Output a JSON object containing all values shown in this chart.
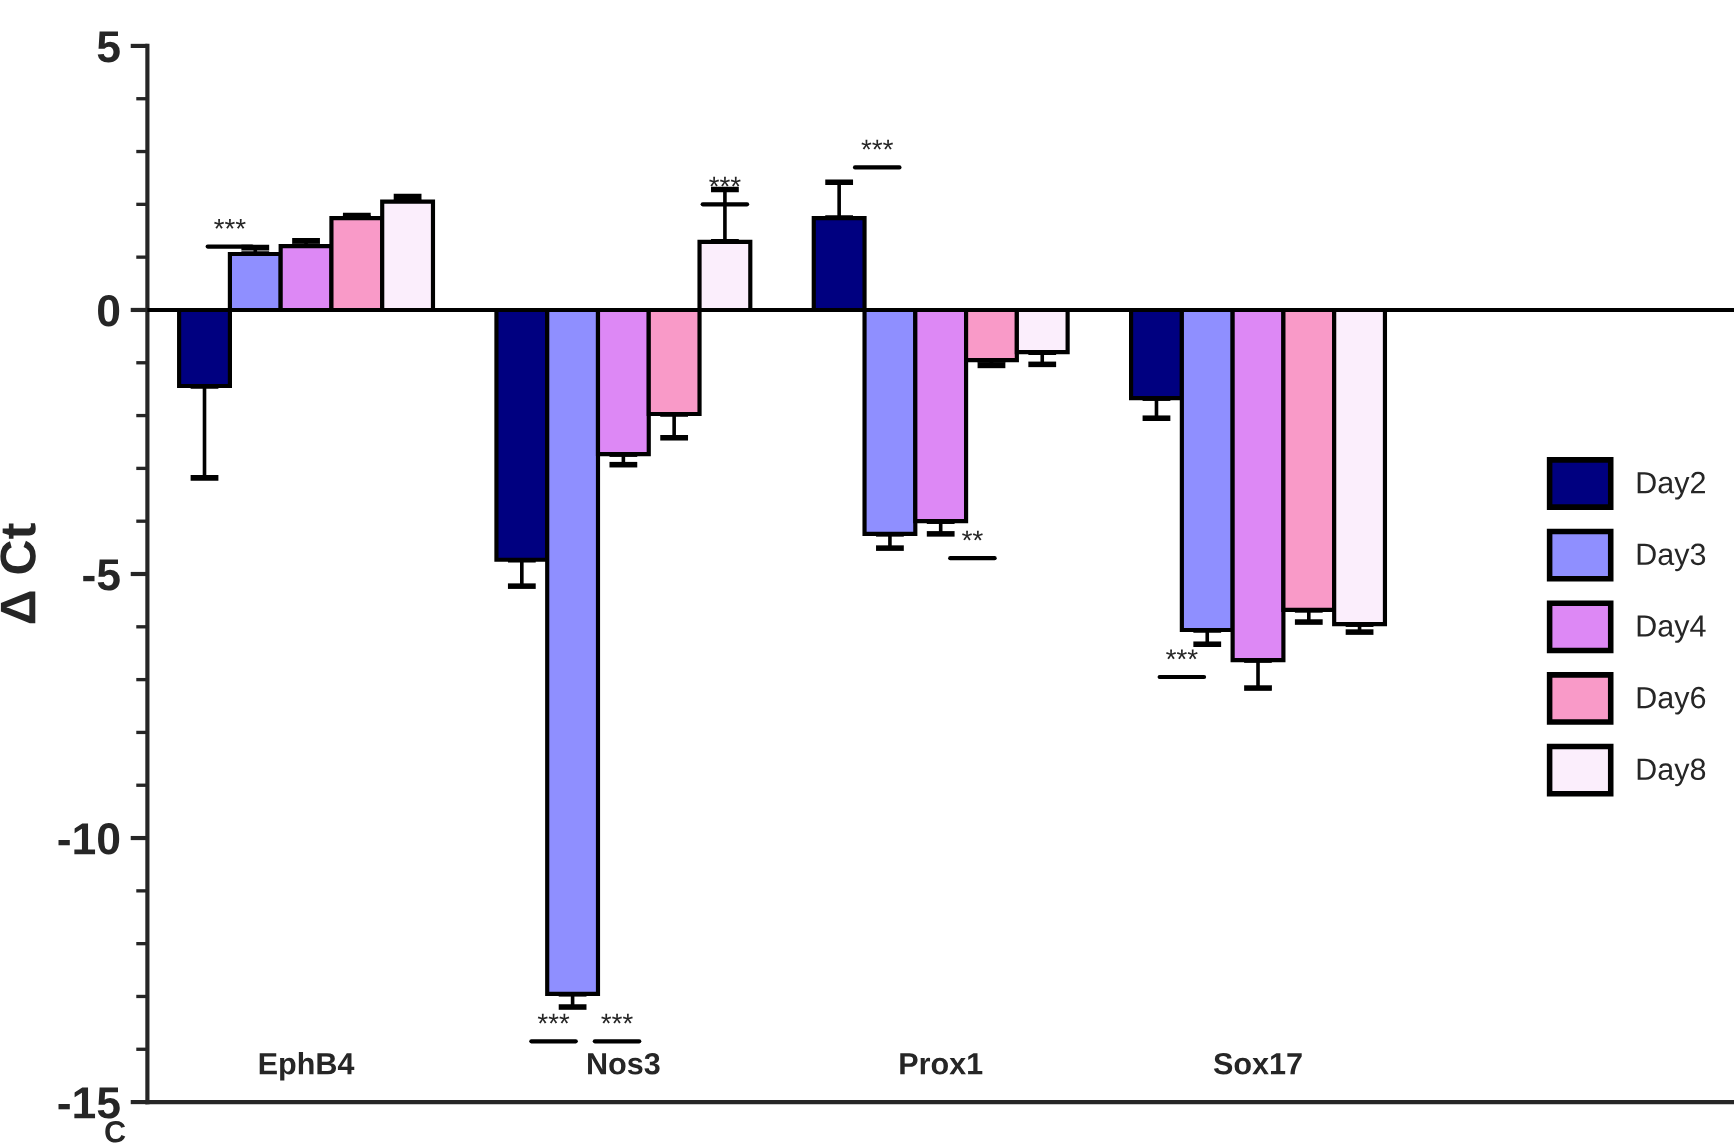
{
  "chart_data": {
    "type": "bar",
    "ylabel": "Δ Ct",
    "categories": [
      "EphB4",
      "Nos3",
      "Prox1",
      "Sox17"
    ],
    "series": [
      {
        "name": "Day2",
        "color": "#000080",
        "values": [
          -1.44,
          -4.73,
          1.74,
          -1.67
        ],
        "errors": [
          1.74,
          0.5,
          0.68,
          0.38
        ]
      },
      {
        "name": "Day3",
        "color": "#8f8fff",
        "values": [
          1.06,
          -12.95,
          -4.24,
          -6.06
        ],
        "errors": [
          0.12,
          0.25,
          0.27,
          0.27
        ]
      },
      {
        "name": "Day4",
        "color": "#dd88f5",
        "values": [
          1.21,
          -2.73,
          -4.0,
          -6.63
        ],
        "errors": [
          0.1,
          0.2,
          0.24,
          0.53
        ]
      },
      {
        "name": "Day6",
        "color": "#f99ac8",
        "values": [
          1.74,
          -1.97,
          -0.95,
          -5.68
        ],
        "errors": [
          0.05,
          0.45,
          0.1,
          0.23
        ]
      },
      {
        "name": "Day8",
        "color": "#fbeefc",
        "values": [
          2.05,
          1.29,
          -0.8,
          -5.95
        ],
        "errors": [
          0.1,
          0.99,
          0.23,
          0.15
        ]
      }
    ],
    "ylim": [
      -15,
      5
    ],
    "yticks": [
      -15,
      -10,
      -5,
      0,
      5
    ],
    "ref_lines": [
      {
        "axis": "y",
        "value": 0,
        "label": null,
        "color": "#000000"
      }
    ],
    "annotations": [
      "***",
      "***",
      "***",
      "***",
      "***",
      "**",
      "***",
      "C"
    ],
    "legend": "right",
    "grid": false
  }
}
